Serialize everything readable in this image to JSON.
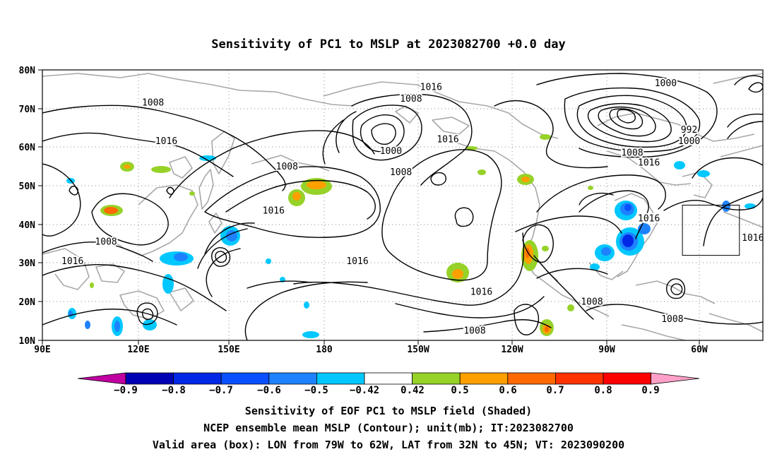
{
  "title": "Sensitivity of PC1 to MSLP at 2023082700 +0.0 day",
  "map": {
    "lat_ticks": [
      "80N",
      "70N",
      "60N",
      "50N",
      "40N",
      "30N",
      "20N",
      "10N"
    ],
    "lon_ticks": [
      "90E",
      "120E",
      "150E",
      "180",
      "150W",
      "120W",
      "90W",
      "60W"
    ],
    "lon_range": [
      90,
      305
    ],
    "lat_range": [
      10,
      80
    ],
    "contour_labels": [
      {
        "text": "1016",
        "lon": 206,
        "lat": 75.5
      },
      {
        "text": "1000",
        "lon": 276,
        "lat": 76.5
      },
      {
        "text": "1008",
        "lon": 123,
        "lat": 71.5
      },
      {
        "text": "1008",
        "lon": 200,
        "lat": 72.5
      },
      {
        "text": "992",
        "lon": 283,
        "lat": 64.5
      },
      {
        "text": "1016",
        "lon": 127,
        "lat": 61.5
      },
      {
        "text": "1016",
        "lon": 211,
        "lat": 62
      },
      {
        "text": "1000",
        "lon": 283,
        "lat": 61.5
      },
      {
        "text": "1000",
        "lon": 194,
        "lat": 59
      },
      {
        "text": "1008",
        "lon": 266,
        "lat": 58.5
      },
      {
        "text": "1016",
        "lon": 271,
        "lat": 56
      },
      {
        "text": "1008",
        "lon": 163,
        "lat": 55
      },
      {
        "text": "1008",
        "lon": 197,
        "lat": 53.5
      },
      {
        "text": "1016",
        "lon": 159,
        "lat": 43.5
      },
      {
        "text": "1016",
        "lon": 271,
        "lat": 41.5
      },
      {
        "text": "1016",
        "lon": 302,
        "lat": 36.5
      },
      {
        "text": "1008",
        "lon": 109,
        "lat": 35.5
      },
      {
        "text": "1016",
        "lon": 99,
        "lat": 30.5
      },
      {
        "text": "1016",
        "lon": 184,
        "lat": 30.5
      },
      {
        "text": "1016",
        "lon": 221,
        "lat": 22.5
      },
      {
        "text": "1008",
        "lon": 254,
        "lat": 20
      },
      {
        "text": "1008",
        "lon": 278,
        "lat": 15.5
      },
      {
        "text": "1008",
        "lon": 219,
        "lat": 12.5
      }
    ],
    "valid_box": {
      "lon_from": 281,
      "lon_to": 298,
      "lat_from": 32,
      "lat_to": 45
    }
  },
  "colorbar": {
    "levels": [
      "−0.9",
      "−0.8",
      "−0.7",
      "−0.6",
      "−0.5",
      "−0.42",
      "0.42",
      "0.5",
      "0.6",
      "0.7",
      "0.8",
      "0.9"
    ],
    "colors": [
      "#c000a0",
      "#0000b4",
      "#0028e6",
      "#0a50ff",
      "#1e82ff",
      "#00c8ff",
      "#ffffff",
      "#96d228",
      "#ffa000",
      "#ff6a00",
      "#ff3200",
      "#ff0000",
      "#ffa0c8"
    ]
  },
  "caption": {
    "line1": "Sensitivity of EOF PC1 to MSLP field (Shaded)",
    "line2": "NCEP ensemble mean MSLP (Contour); unit(mb); IT:2023082700",
    "line3": "Valid area (box): LON from 79W to 62W, LAT from 32N to 45N; VT: 2023090200"
  }
}
